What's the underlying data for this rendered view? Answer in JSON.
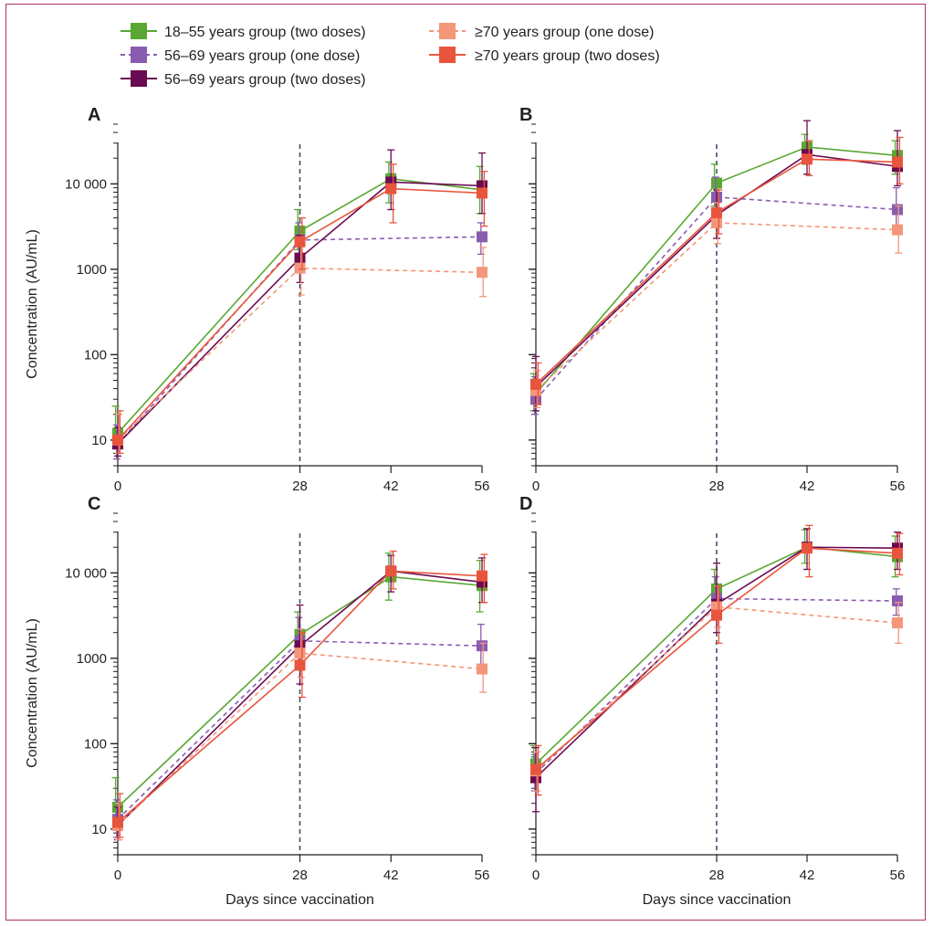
{
  "legend": [
    {
      "name": "18–55 years group (two doses)",
      "color": "#5aa833",
      "dash": false
    },
    {
      "name": "56–69 years group (one dose)",
      "color": "#8a5cb0",
      "dash": true
    },
    {
      "name": "56–69 years group (two doses)",
      "color": "#6a0a52",
      "dash": false
    },
    {
      "name": "≥70 years group (one dose)",
      "color": "#f4967a",
      "dash": true
    },
    {
      "name": "≥70 years group (two doses)",
      "color": "#e8553c",
      "dash": false
    }
  ],
  "chart_data": [
    {
      "type": "line",
      "panel": "A",
      "ylabel": "Concentration (AU/mL)",
      "xlabel": "",
      "x": [
        0,
        28,
        42,
        56
      ],
      "xticks": [
        "0",
        "28",
        "42",
        "56"
      ],
      "yscale": "log",
      "ylim": [
        5,
        50000
      ],
      "yticks": [
        "10",
        "100",
        "1000",
        "10 000"
      ],
      "series": [
        {
          "name": "18–55 years group (two doses)",
          "x": [
            0,
            28,
            42,
            56
          ],
          "values": [
            12,
            2800,
            11500,
            8500
          ],
          "err_low": [
            8,
            1700,
            6000,
            4500
          ],
          "err_high": [
            25,
            5000,
            18000,
            16000
          ]
        },
        {
          "name": "56–69 years group (one dose)",
          "x": [
            0,
            28,
            56
          ],
          "values": [
            9,
            2200,
            2400
          ],
          "err_low": [
            6,
            1300,
            1500
          ],
          "err_high": [
            15,
            3500,
            3500
          ]
        },
        {
          "name": "56–69 years group (two doses)",
          "x": [
            0,
            28,
            42,
            56
          ],
          "values": [
            9,
            1350,
            10500,
            9500
          ],
          "err_low": [
            6.5,
            700,
            5000,
            4500
          ],
          "err_high": [
            14,
            2500,
            25000,
            23000
          ]
        },
        {
          "name": "≥70 years group (one dose)",
          "x": [
            0,
            28,
            56
          ],
          "values": [
            10,
            1030,
            920
          ],
          "err_low": [
            7,
            500,
            480
          ],
          "err_high": [
            20,
            2200,
            1800
          ]
        },
        {
          "name": "≥70 years group (two doses)",
          "x": [
            0,
            28,
            42,
            56
          ],
          "values": [
            10,
            2100,
            8800,
            7800
          ],
          "err_low": [
            7,
            1000,
            3500,
            3200
          ],
          "err_high": [
            22,
            4000,
            17000,
            14000
          ]
        }
      ]
    },
    {
      "type": "line",
      "panel": "B",
      "ylabel": "",
      "xlabel": "",
      "x": [
        0,
        28,
        42,
        56
      ],
      "xticks": [
        "0",
        "28",
        "42",
        "56"
      ],
      "yscale": "log",
      "ylim": [
        5,
        50000
      ],
      "yticks": [],
      "series": [
        {
          "name": "18–55 years group (two doses)",
          "x": [
            0,
            28,
            42,
            56
          ],
          "values": [
            35,
            10200,
            27000,
            21500
          ],
          "err_low": [
            22,
            5500,
            17000,
            13000
          ],
          "err_high": [
            60,
            17000,
            38000,
            32000
          ]
        },
        {
          "name": "56–69 years group (one dose)",
          "x": [
            0,
            28,
            56
          ],
          "values": [
            30,
            7000,
            5000
          ],
          "err_low": [
            20,
            4200,
            3000
          ],
          "err_high": [
            55,
            12000,
            9000
          ]
        },
        {
          "name": "56–69 years group (two doses)",
          "x": [
            0,
            28,
            42,
            56
          ],
          "values": [
            42,
            4300,
            22000,
            16000
          ],
          "err_low": [
            22,
            2300,
            13000,
            9500
          ],
          "err_high": [
            95,
            8500,
            55000,
            42000
          ]
        },
        {
          "name": "≥70 years group (one dose)",
          "x": [
            0,
            28,
            56
          ],
          "values": [
            38,
            3500,
            2900
          ],
          "err_low": [
            24,
            2000,
            1550
          ],
          "err_high": [
            65,
            6000,
            5500
          ]
        },
        {
          "name": "≥70 years group (two doses)",
          "x": [
            0,
            28,
            42,
            56
          ],
          "values": [
            45,
            4600,
            19500,
            18000
          ],
          "err_low": [
            26,
            2600,
            12500,
            10000
          ],
          "err_high": [
            80,
            8500,
            32000,
            35000
          ]
        }
      ]
    },
    {
      "type": "line",
      "panel": "C",
      "ylabel": "Concentration (AU/mL)",
      "xlabel": "Days since vaccination",
      "x": [
        0,
        28,
        42,
        56
      ],
      "xticks": [
        "0",
        "28",
        "42",
        "56"
      ],
      "yscale": "log",
      "ylim": [
        5,
        50000
      ],
      "yticks": [
        "10",
        "100",
        "1000",
        "10 000"
      ],
      "series": [
        {
          "name": "18–55 years group (two doses)",
          "x": [
            0,
            28,
            42,
            56
          ],
          "values": [
            18,
            1900,
            9000,
            7100
          ],
          "err_low": [
            10,
            1100,
            4800,
            3500
          ],
          "err_high": [
            40,
            3500,
            17000,
            14000
          ]
        },
        {
          "name": "56–69 years group (one dose)",
          "x": [
            0,
            28,
            56
          ],
          "values": [
            13,
            1600,
            1400
          ],
          "err_low": [
            8,
            900,
            800
          ],
          "err_high": [
            22,
            3000,
            2500
          ]
        },
        {
          "name": "56–69 years group (two doses)",
          "x": [
            0,
            28,
            42,
            56
          ],
          "values": [
            11,
            1400,
            10500,
            7800
          ],
          "err_low": [
            7.5,
            500,
            6000,
            4500
          ],
          "err_high": [
            18,
            4200,
            16000,
            15000
          ]
        },
        {
          "name": "≥70 years group (one dose)",
          "x": [
            0,
            28,
            56
          ],
          "values": [
            11,
            1150,
            750
          ],
          "err_low": [
            7.5,
            600,
            400
          ],
          "err_high": [
            20,
            2200,
            1500
          ]
        },
        {
          "name": "≥70 years group (two doses)",
          "x": [
            0,
            28,
            42,
            56
          ],
          "values": [
            12,
            830,
            10500,
            9200
          ],
          "err_low": [
            8,
            350,
            6500,
            4500
          ],
          "err_high": [
            26,
            2000,
            18000,
            16500
          ]
        }
      ]
    },
    {
      "type": "line",
      "panel": "D",
      "ylabel": "",
      "xlabel": "Days since vaccination",
      "x": [
        0,
        28,
        42,
        56
      ],
      "xticks": [
        "0",
        "28",
        "42",
        "56"
      ],
      "yscale": "log",
      "ylim": [
        5,
        50000
      ],
      "yticks": [],
      "series": [
        {
          "name": "18–55 years group (two doses)",
          "x": [
            0,
            28,
            42,
            56
          ],
          "values": [
            58,
            6500,
            20000,
            15500
          ],
          "err_low": [
            35,
            3800,
            13000,
            9000
          ],
          "err_high": [
            95,
            11000,
            32000,
            27000
          ]
        },
        {
          "name": "56–69 years group (one dose)",
          "x": [
            0,
            28,
            56
          ],
          "values": [
            45,
            5000,
            4700
          ],
          "err_low": [
            28,
            2800,
            3200
          ],
          "err_high": [
            75,
            9000,
            6500
          ]
        },
        {
          "name": "56–69 years group (two doses)",
          "x": [
            0,
            28,
            42,
            56
          ],
          "values": [
            40,
            4300,
            20000,
            19500
          ],
          "err_low": [
            16,
            2000,
            11000,
            11000
          ],
          "err_high": [
            90,
            13000,
            33000,
            30000
          ]
        },
        {
          "name": "≥70 years group (one dose)",
          "x": [
            0,
            28,
            56
          ],
          "values": [
            48,
            4000,
            2600
          ],
          "err_low": [
            28,
            2300,
            1500
          ],
          "err_high": [
            80,
            7000,
            4500
          ]
        },
        {
          "name": "≥70 years group (two doses)",
          "x": [
            0,
            28,
            42,
            56
          ],
          "values": [
            50,
            3200,
            19500,
            17000
          ],
          "err_low": [
            25,
            1500,
            9000,
            9500
          ],
          "err_high": [
            95,
            7000,
            36000,
            29000
          ]
        }
      ]
    }
  ]
}
